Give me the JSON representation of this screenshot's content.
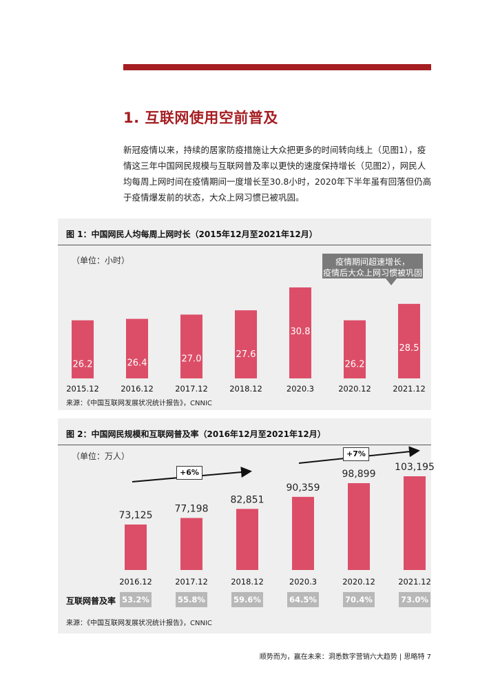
{
  "section_title": "1. 互联网使用空前普及",
  "intro_text": "新冠疫情以来，持续的居家防疫措施让大众把更多的时间转向线上（见图1），疫情这三年中国网民规模与互联网普及率以更快的速度保持增长（见图2），网民人均每周上网时间在疫情期间一度增长至30.8小时，2020年下半年虽有回落但仍高于疫情爆发前的状态，大众上网习惯已被巩固。",
  "figure1": {
    "title": "图 1：中国网民人均每周上网时长（2015年12月至2021年12月）",
    "unit": "（单位：小时）",
    "callout_line1": "疫情期间超速增长，",
    "callout_line2": "疫情后大众上网习惯被巩固",
    "source": "来源：《中国互联网发展状况统计报告》，CNNIC"
  },
  "figure2": {
    "title": "图 2：中国网民规模和互联网普及率（2016年12月至2021年12月）",
    "unit": "（单位：万人）",
    "growth1": "+6%",
    "growth2": "+7%",
    "rate_label": "互联网普及率",
    "source": "来源：《中国互联网发展状况统计报告》，CNNIC"
  },
  "footer": "顺势而为，赢在未来：洞悉数字营销六大趋势 | 思略特 7",
  "colors": {
    "accent": "#a51e22",
    "bar": "#dc4e68",
    "badge": "#b8b8b8",
    "panel": "#efefef"
  },
  "chart_data": [
    {
      "type": "bar",
      "title": "图 1：中国网民人均每周上网时长（2015年12月至2021年12月）",
      "ylabel": "（单位：小时）",
      "categories": [
        "2015.12",
        "2016.12",
        "2017.12",
        "2018.12",
        "2020.3",
        "2020.12",
        "2021.12"
      ],
      "values": [
        26.2,
        26.4,
        27.0,
        27.6,
        30.8,
        26.2,
        28.5
      ],
      "value_labels": [
        "26.2",
        "26.4",
        "27.0",
        "27.6",
        "30.8",
        "26.2",
        "28.5"
      ],
      "grid": false
    },
    {
      "type": "bar",
      "title": "图 2：中国网民规模和互联网普及率（2016年12月至2021年12月）",
      "ylabel": "（单位：万人）",
      "categories": [
        "2016.12",
        "2017.12",
        "2018.12",
        "2020.3",
        "2020.12",
        "2021.12"
      ],
      "values": [
        73125,
        77198,
        82851,
        90359,
        98899,
        103195
      ],
      "value_labels": [
        "73,125",
        "77,198",
        "82,851",
        "90,359",
        "98,899",
        "103,195"
      ],
      "penetration_rate": [
        "53.2%",
        "55.8%",
        "59.6%",
        "64.5%",
        "70.4%",
        "73.0%"
      ],
      "grid": false
    }
  ]
}
